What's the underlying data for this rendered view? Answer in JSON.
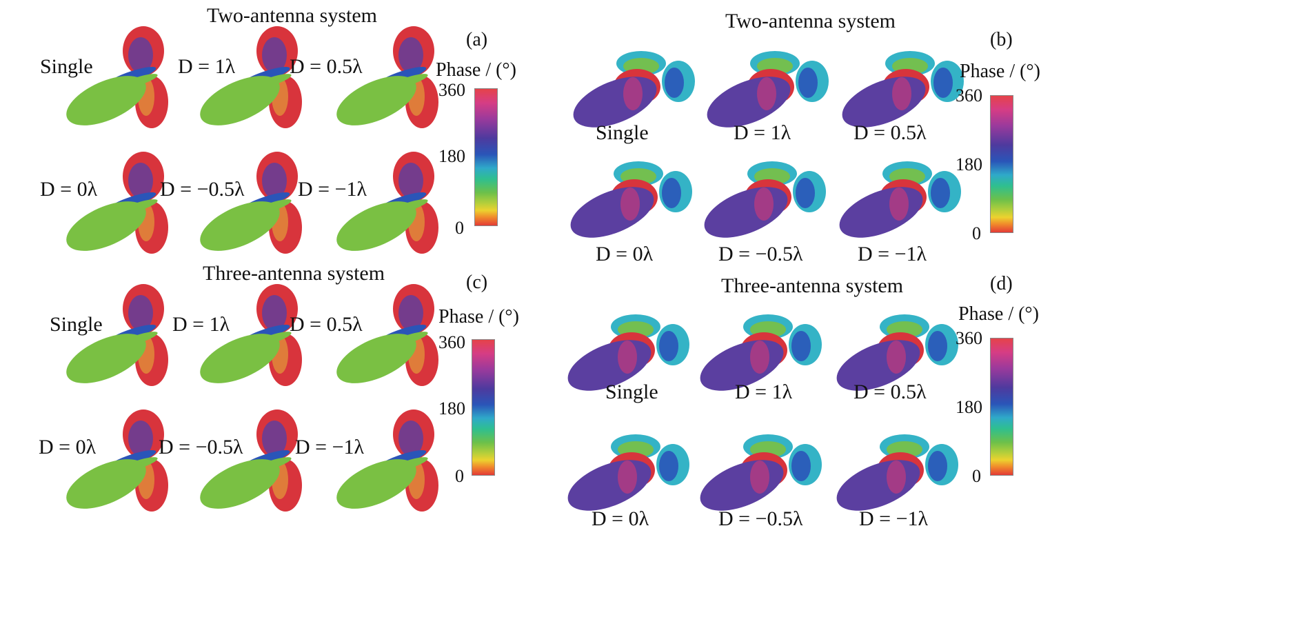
{
  "panels": [
    {
      "letter": "(a)",
      "title": "Two-antenna system",
      "labels": [
        "Single",
        "D = 1λ",
        "D = 0.5λ",
        "D = 0λ",
        "D = −0.5λ",
        "D = −1λ"
      ],
      "colorbar": {
        "title": "Phase / (°)",
        "ticks": [
          "360",
          "180",
          "0"
        ]
      }
    },
    {
      "letter": "(b)",
      "title": "Two-antenna system",
      "labels": [
        "Single",
        "D = 1λ",
        "D = 0.5λ",
        "D = 0λ",
        "D = −0.5λ",
        "D = −1λ"
      ],
      "colorbar": {
        "title": "Phase / (°)",
        "ticks": [
          "360",
          "180",
          "0"
        ]
      }
    },
    {
      "letter": "(c)",
      "title": "Three-antenna system",
      "labels": [
        "Single",
        "D = 1λ",
        "D = 0.5λ",
        "D = 0λ",
        "D = −0.5λ",
        "D = −1λ"
      ],
      "colorbar": {
        "title": "Phase / (°)",
        "ticks": [
          "360",
          "180",
          "0"
        ]
      }
    },
    {
      "letter": "(d)",
      "title": "Three-antenna system",
      "labels": [
        "Single",
        "D = 1λ",
        "D = 0.5λ",
        "D = 0λ",
        "D = −0.5λ",
        "D = −1λ"
      ],
      "colorbar": {
        "title": "Phase / (°)",
        "ticks": [
          "360",
          "180",
          "0"
        ]
      }
    }
  ],
  "colors": {
    "green_lobe": "#7ac043",
    "purple_lobe": "#5b3fa0",
    "red_lobe": "#d8343c",
    "blue_ring": "#2a55b8",
    "cyan_ring": "#34b3c6"
  }
}
